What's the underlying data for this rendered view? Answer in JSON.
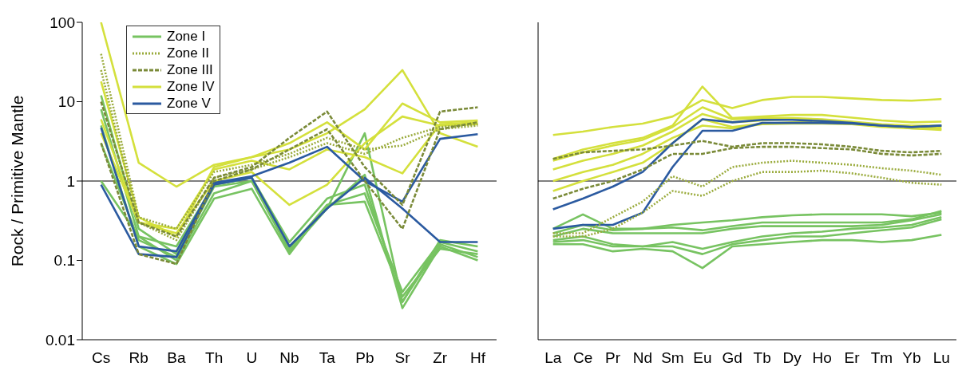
{
  "chart_data": [
    {
      "type": "line",
      "ylabel": "Rock / Primitive Mantle",
      "categories": [
        "Cs",
        "Rb",
        "Ba",
        "Th",
        "U",
        "Nb",
        "Ta",
        "Pb",
        "Sr",
        "Zr",
        "Hf"
      ],
      "log": true,
      "ylim": [
        0.01,
        100
      ],
      "yticks": [
        0.01,
        0.1,
        1,
        10,
        100
      ],
      "grid": false,
      "legend": "top left",
      "marker": "none",
      "ref_lines": [
        {
          "axis": "y",
          "value": 1,
          "color": "#000000"
        }
      ],
      "series": [
        {
          "name": "Zone I",
          "color": "#77c361",
          "line_style": "solid",
          "values": [
            12,
            0.25,
            0.12,
            0.9,
            1.1,
            0.15,
            0.45,
            4,
            0.03,
            0.18,
            0.15
          ]
        },
        {
          "color": "#77c361",
          "line_style": "solid",
          "values": [
            8,
            0.2,
            0.1,
            0.7,
            1.0,
            0.13,
            0.45,
            1.2,
            0.025,
            0.15,
            0.1
          ]
        },
        {
          "color": "#77c361",
          "line_style": "solid",
          "values": [
            5,
            0.15,
            0.09,
            0.6,
            0.8,
            0.12,
            0.5,
            0.55,
            0.035,
            0.14,
            0.12
          ]
        },
        {
          "color": "#77c361",
          "line_style": "solid",
          "values": [
            3,
            0.18,
            0.11,
            0.85,
            1.0,
            0.14,
            0.5,
            0.7,
            0.04,
            0.17,
            0.13
          ]
        },
        {
          "color": "#77c361",
          "line_style": "solid",
          "values": [
            1,
            0.2,
            0.15,
            0.9,
            1.1,
            0.17,
            0.6,
            0.9,
            0.03,
            0.16,
            0.11
          ]
        },
        {
          "name": "Zone II",
          "color": "#9aab3c",
          "line_style": "dotted",
          "values": [
            40,
            0.35,
            0.25,
            1.3,
            1.6,
            2.2,
            3.5,
            2.5,
            2.8,
            4.5,
            5
          ]
        },
        {
          "color": "#9aab3c",
          "line_style": "dotted",
          "values": [
            25,
            0.3,
            0.18,
            1.1,
            1.4,
            2.0,
            3.0,
            2.2,
            3.5,
            4.8,
            5.2
          ]
        },
        {
          "name": "Zone III",
          "color": "#7a8a38",
          "line_style": "dashed",
          "values": [
            10,
            0.3,
            0.2,
            1.1,
            1.5,
            3.5,
            7.5,
            1.5,
            0.5,
            7.5,
            8.5
          ]
        },
        {
          "color": "#7a8a38",
          "line_style": "dashed",
          "values": [
            3,
            0.12,
            0.09,
            1.0,
            1.4,
            2.5,
            4.5,
            1.0,
            0.25,
            4.5,
            5.5
          ]
        },
        {
          "name": "Zone IV",
          "color": "#d4e03c",
          "line_style": "solid",
          "values": [
            100,
            1.7,
            0.85,
            1.6,
            2.0,
            2.5,
            4.0,
            8.0,
            25,
            4,
            2.7
          ]
        },
        {
          "color": "#d4e03c",
          "line_style": "solid",
          "values": [
            18,
            0.35,
            0.2,
            1.5,
            2.0,
            3.0,
            5.5,
            2.5,
            9.5,
            5.5,
            5.8
          ]
        },
        {
          "color": "#d4e03c",
          "line_style": "solid",
          "values": [
            6,
            0.3,
            0.25,
            1.4,
            1.8,
            1.4,
            2.5,
            2.0,
            1.25,
            5.2,
            5.5
          ]
        },
        {
          "color": "#d4e03c",
          "line_style": "solid",
          "values": [
            4,
            0.3,
            0.22,
            1.0,
            1.3,
            0.5,
            0.9,
            3.0,
            6.5,
            5,
            5.2
          ]
        },
        {
          "name": "Zone V",
          "color": "#2b5aa0",
          "line_style": "solid",
          "values": [
            4.7,
            0.15,
            0.13,
            0.95,
            1.15,
            1.7,
            2.7,
            1.0,
            0.55,
            3.4,
            3.9
          ]
        },
        {
          "color": "#2b5aa0",
          "line_style": "solid",
          "values": [
            0.9,
            0.12,
            0.11,
            0.9,
            1.1,
            0.15,
            0.45,
            1.1,
            0.45,
            0.17,
            0.17
          ]
        }
      ]
    },
    {
      "type": "line",
      "categories": [
        "La",
        "Ce",
        "Pr",
        "Nd",
        "Sm",
        "Eu",
        "Gd",
        "Tb",
        "Dy",
        "Ho",
        "Er",
        "Tm",
        "Yb",
        "Lu"
      ],
      "log": true,
      "ylim": [
        0.01,
        100
      ],
      "yticks": [
        0.01,
        0.1,
        1,
        10,
        100
      ],
      "tick_labels": "x",
      "grid": false,
      "marker": "none",
      "ref_lines": [
        {
          "axis": "y",
          "value": 1,
          "color": "#000000"
        }
      ],
      "series": [
        {
          "color": "#77c361",
          "line_style": "solid",
          "values": [
            0.25,
            0.38,
            0.25,
            0.25,
            0.28,
            0.3,
            0.32,
            0.35,
            0.37,
            0.38,
            0.38,
            0.38,
            0.36,
            0.4
          ]
        },
        {
          "color": "#77c361",
          "line_style": "solid",
          "values": [
            0.22,
            0.28,
            0.24,
            0.25,
            0.26,
            0.24,
            0.27,
            0.3,
            0.3,
            0.3,
            0.3,
            0.3,
            0.33,
            0.42
          ]
        },
        {
          "color": "#77c361",
          "line_style": "solid",
          "values": [
            0.2,
            0.25,
            0.22,
            0.22,
            0.22,
            0.22,
            0.25,
            0.27,
            0.27,
            0.27,
            0.27,
            0.28,
            0.32,
            0.38
          ]
        },
        {
          "color": "#77c361",
          "line_style": "solid",
          "values": [
            0.18,
            0.2,
            0.16,
            0.15,
            0.17,
            0.14,
            0.17,
            0.2,
            0.22,
            0.23,
            0.25,
            0.26,
            0.28,
            0.35
          ]
        },
        {
          "color": "#77c361",
          "line_style": "solid",
          "values": [
            0.17,
            0.18,
            0.15,
            0.15,
            0.15,
            0.12,
            0.16,
            0.18,
            0.2,
            0.2,
            0.22,
            0.24,
            0.26,
            0.33
          ]
        },
        {
          "color": "#77c361",
          "line_style": "solid",
          "values": [
            0.16,
            0.16,
            0.13,
            0.14,
            0.13,
            0.08,
            0.15,
            0.16,
            0.17,
            0.18,
            0.18,
            0.17,
            0.18,
            0.21
          ]
        },
        {
          "color": "#9aab3c",
          "line_style": "dotted",
          "values": [
            0.22,
            0.22,
            0.35,
            0.55,
            1.15,
            0.85,
            1.5,
            1.7,
            1.8,
            1.7,
            1.6,
            1.45,
            1.35,
            1.2
          ]
        },
        {
          "color": "#9aab3c",
          "line_style": "dotted",
          "values": [
            0.2,
            0.2,
            0.25,
            0.4,
            0.75,
            0.65,
            1.0,
            1.3,
            1.3,
            1.35,
            1.25,
            1.1,
            0.95,
            0.9
          ]
        },
        {
          "color": "#7a8a38",
          "line_style": "dashed",
          "values": [
            1.9,
            2.3,
            2.4,
            2.5,
            2.8,
            3.2,
            2.7,
            3.0,
            3.0,
            2.9,
            2.7,
            2.4,
            2.3,
            2.4
          ]
        },
        {
          "color": "#7a8a38",
          "line_style": "dashed",
          "values": [
            0.6,
            0.8,
            1.0,
            1.4,
            2.2,
            2.2,
            2.6,
            2.7,
            2.7,
            2.6,
            2.5,
            2.2,
            2.1,
            2.2
          ]
        },
        {
          "color": "#d4e03c",
          "line_style": "solid",
          "values": [
            3.8,
            4.2,
            4.8,
            5.3,
            6.5,
            10.5,
            8.3,
            10.5,
            11.5,
            11.5,
            11,
            10.5,
            10.3,
            10.8
          ]
        },
        {
          "color": "#d4e03c",
          "line_style": "solid",
          "values": [
            1.9,
            2.5,
            3.0,
            3.5,
            5.0,
            15.5,
            6.2,
            6.5,
            6.8,
            6.8,
            6.3,
            5.8,
            5.5,
            5.6
          ]
        },
        {
          "color": "#d4e03c",
          "line_style": "solid",
          "values": [
            1.8,
            2.3,
            2.8,
            3.3,
            4.8,
            8.5,
            6.0,
            6.2,
            6.2,
            6.0,
            5.6,
            5.2,
            5.0,
            5.0
          ]
        },
        {
          "color": "#d4e03c",
          "line_style": "solid",
          "values": [
            1.4,
            1.8,
            2.2,
            2.8,
            4.2,
            7.0,
            5.5,
            5.8,
            6.0,
            5.8,
            5.5,
            5.0,
            4.6,
            4.4
          ]
        },
        {
          "color": "#d4e03c",
          "line_style": "solid",
          "values": [
            1.0,
            1.3,
            1.6,
            2.2,
            3.5,
            5.0,
            4.6,
            5.2,
            5.3,
            5.3,
            5.2,
            4.8,
            4.6,
            4.5
          ]
        },
        {
          "color": "#d4e03c",
          "line_style": "solid",
          "values": [
            0.75,
            1.0,
            1.3,
            1.7,
            3.0,
            6.0,
            4.8,
            5.3,
            5.5,
            5.5,
            5.3,
            5.0,
            4.7,
            4.7
          ]
        },
        {
          "color": "#2b5aa0",
          "line_style": "solid",
          "values": [
            0.44,
            0.6,
            0.85,
            1.3,
            3.0,
            6.0,
            5.5,
            5.9,
            5.9,
            5.7,
            5.4,
            5.0,
            4.8,
            5.0
          ]
        },
        {
          "color": "#2b5aa0",
          "line_style": "solid",
          "values": [
            0.25,
            0.28,
            0.28,
            0.4,
            1.5,
            4.3,
            4.3,
            5.4,
            5.4,
            5.4,
            5.3,
            5.0,
            4.8,
            5.0
          ]
        }
      ]
    }
  ]
}
